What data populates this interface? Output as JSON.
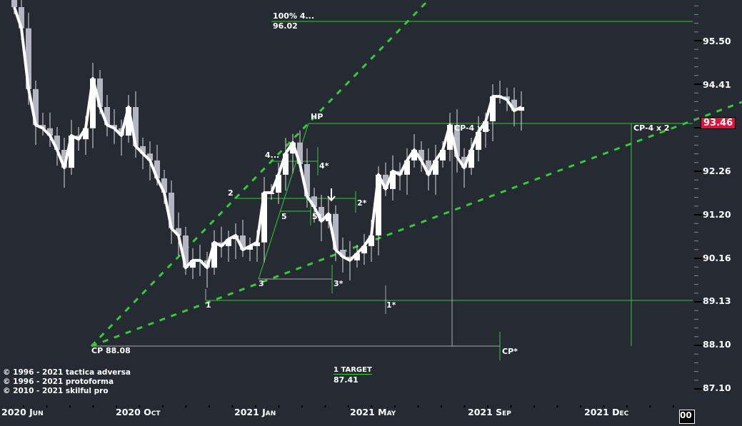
{
  "chart_data": {
    "type": "candlestick",
    "instrument_last_price": "93.46",
    "colors": {
      "background": "#262a33",
      "up_candle": "#ffffff",
      "down_candle": "#b4b6c4",
      "smooth_line": "#ffffff",
      "annotation": "#33cc33",
      "last_price_box": "#dc143c"
    },
    "y_ticks": [
      "95.50",
      "94.41",
      "92.26",
      "91.20",
      "90.16",
      "89.13",
      "88.10",
      "87.10"
    ],
    "x_ticks": [
      "2020 Jun",
      "2020 Oct",
      "2021 Jan",
      "2021 May",
      "2021 Sep",
      "2021 Dec"
    ],
    "close": [
      96.34,
      95.82,
      94.33,
      93.45,
      93.37,
      93.19,
      92.84,
      92.4,
      93.19,
      93.1,
      93.37,
      94.59,
      93.89,
      93.45,
      93.37,
      93.19,
      93.89,
      92.93,
      92.75,
      92.58,
      92.14,
      91.79,
      90.92,
      90.74,
      89.95,
      90.13,
      90.13,
      89.95,
      90.57,
      90.48,
      90.65,
      90.74,
      90.39,
      90.48,
      90.57,
      91.79,
      91.79,
      92.23,
      92.75,
      93.02,
      92.49,
      91.7,
      91.44,
      91.09,
      91.27,
      90.39,
      90.22,
      90.13,
      90.3,
      90.48,
      90.74,
      92.23,
      91.88,
      92.32,
      92.23,
      92.58,
      92.84,
      92.58,
      92.23,
      92.58,
      92.84,
      93.45,
      92.67,
      92.4,
      92.84,
      93.28,
      93.54,
      94.15,
      94.15,
      94.07,
      93.8,
      93.89
    ],
    "annotations": {
      "top_level": {
        "label": "100%  4...",
        "value": "96.02"
      },
      "hp": "HP",
      "cp_4x1": "CP-4 x 1",
      "cp_4x2": "CP-4 x 2",
      "cp": "CP 88.08",
      "cp_star": "CP*",
      "p1": "1",
      "p1_star": "1*",
      "p2": "2",
      "p2_star": "2*",
      "p3": "3",
      "p3_star": "3*",
      "p4": "4...",
      "p4_star": "4*",
      "p5": "5",
      "p5_star": "5*",
      "target": {
        "label": "1 TARGET",
        "value": "87.41"
      }
    }
  },
  "copyright": [
    "© 1996 - 2021 tactica adversa",
    "© 1996 - 2021 protoforma",
    "© 2010 - 2021 skilful pro"
  ],
  "corner_label": "00"
}
